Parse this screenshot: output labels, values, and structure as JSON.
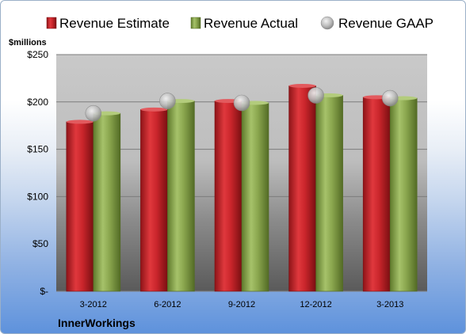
{
  "chart_data": {
    "type": "bar",
    "categories": [
      "3-2012",
      "6-2012",
      "9-2012",
      "12-2012",
      "3-2013"
    ],
    "series": [
      {
        "name": "Revenue Estimate",
        "kind": "bar",
        "color": "#c9252b",
        "values": [
          179,
          192,
          201,
          217,
          205
        ]
      },
      {
        "name": "Revenue Actual",
        "kind": "bar",
        "color": "#8aa64e",
        "values": [
          188,
          201,
          199,
          207,
          204
        ]
      },
      {
        "name": "Revenue GAAP",
        "kind": "marker",
        "color": "#c8c8c8",
        "values": [
          188,
          201,
          199,
          207,
          204
        ]
      }
    ],
    "ylim": [
      0,
      250
    ],
    "yticks": [
      0,
      50,
      100,
      150,
      200,
      250
    ],
    "ytick_labels": [
      "$-",
      "$50",
      "$100",
      "$150",
      "$200",
      "$250"
    ],
    "ylabel": "$millions",
    "grid": true,
    "legend": "top"
  },
  "company": "InnerWorkings"
}
